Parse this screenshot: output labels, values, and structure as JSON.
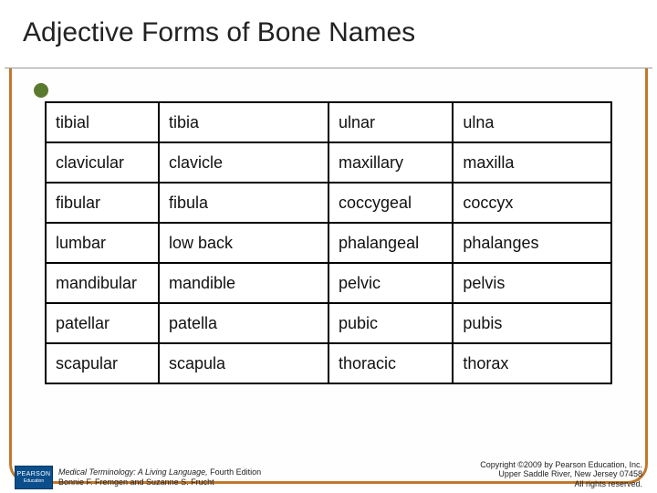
{
  "title": "Adjective Forms of Bone Names",
  "table": {
    "rows": [
      [
        "tibial",
        "tibia",
        "ulnar",
        "ulna"
      ],
      [
        "clavicular",
        "clavicle",
        "maxillary",
        "maxilla"
      ],
      [
        "fibular",
        "fibula",
        "coccygeal",
        "coccyx"
      ],
      [
        "lumbar",
        "low back",
        "phalangeal",
        "phalanges"
      ],
      [
        "mandibular",
        "mandible",
        "pelvic",
        "pelvis"
      ],
      [
        "patellar",
        "patella",
        "pubic",
        "pubis"
      ],
      [
        "scapular",
        "scapula",
        "thoracic",
        "thorax"
      ]
    ],
    "border_color": "#000000",
    "cell_bg": "#ffffff",
    "cell_fontsize": 18
  },
  "frame": {
    "border_color": "#c0792c",
    "accent_dot_color": "#5a7a2e"
  },
  "footer": {
    "logo_top": "PEARSON",
    "logo_bottom": "Education",
    "book_title": "Medical Terminology: A Living Language,",
    "book_edition": " Fourth Edition",
    "authors": "Bonnie F. Fremgen and Suzanne S. Frucht",
    "copyright_line1": "Copyright ©2009 by Pearson Education, Inc.",
    "copyright_line2": "Upper Saddle River, New Jersey 07458",
    "copyright_line3": "All rights reserved."
  }
}
